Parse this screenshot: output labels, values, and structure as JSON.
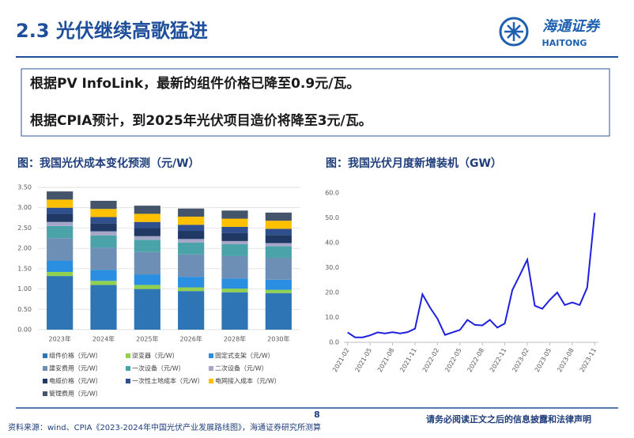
{
  "header": {
    "title": "2.3 光伏继续高歌猛进",
    "logo_cn": "海通证券",
    "logo_en": "HAITONG"
  },
  "box": {
    "lines": [
      "根据PV InfoLink，最新的组件价格已降至0.9元/瓦。",
      "根据CPIA预计，到2025年光伏项目造价将降至3元/瓦。"
    ]
  },
  "footer": {
    "source": "资料来源：wind、CPIA《2023-2024年中国光伏产业发展路线图》，海通证券研究所测算",
    "page": "8",
    "disclaimer": "请务必阅读正文之后的信息披露和法律声明"
  },
  "chart_data": [
    {
      "type": "stacked_bar",
      "title": "图：我国光伏成本变化预测（元/W）",
      "categories": [
        "2023年",
        "2024年",
        "2025年",
        "2026年",
        "2028年",
        "2030年"
      ],
      "ylim": [
        0,
        3.5
      ],
      "yticks": [
        {
          "value": 0,
          "label": "0.00"
        },
        {
          "value": 0.5,
          "label": "0.50"
        },
        {
          "value": 1,
          "label": "1.00"
        },
        {
          "value": 1.5,
          "label": "1.50"
        },
        {
          "value": 2,
          "label": "2.00"
        },
        {
          "value": 2.5,
          "label": "2.50"
        },
        {
          "value": 3,
          "label": "3.00"
        },
        {
          "value": 3.5,
          "label": "3.50"
        }
      ],
      "grid": true,
      "series": [
        {
          "name": "组件价格（元/W）",
          "color": "#2e75b6",
          "values": [
            1.32,
            1.1,
            1.0,
            0.95,
            0.92,
            0.9
          ]
        },
        {
          "name": "逆变器（元/W）",
          "color": "#92d050",
          "values": [
            0.1,
            0.1,
            0.1,
            0.09,
            0.09,
            0.08
          ]
        },
        {
          "name": "固定式支架（元/W）",
          "color": "#2a8fe0",
          "values": [
            0.28,
            0.27,
            0.26,
            0.26,
            0.25,
            0.25
          ]
        },
        {
          "name": "建安费用（元/W）",
          "color": "#6d8fb5",
          "values": [
            0.55,
            0.55,
            0.55,
            0.55,
            0.55,
            0.54
          ]
        },
        {
          "name": "一次设备（元/W）",
          "color": "#4aa3a8",
          "values": [
            0.3,
            0.3,
            0.3,
            0.29,
            0.29,
            0.28
          ]
        },
        {
          "name": "二次设备（元/W）",
          "color": "#a6a6c8",
          "values": [
            0.1,
            0.1,
            0.09,
            0.09,
            0.08,
            0.08
          ]
        },
        {
          "name": "电缆价格（元/W）",
          "color": "#1f3864",
          "values": [
            0.2,
            0.2,
            0.2,
            0.2,
            0.2,
            0.2
          ]
        },
        {
          "name": "一次性土地成本（元/W）",
          "color": "#2f4f8f",
          "values": [
            0.15,
            0.15,
            0.15,
            0.15,
            0.15,
            0.15
          ]
        },
        {
          "name": "电网接入成本（元/W）",
          "color": "#ffc000",
          "values": [
            0.2,
            0.2,
            0.2,
            0.2,
            0.2,
            0.2
          ]
        },
        {
          "name": "管理费用（元/W）",
          "color": "#44546a",
          "values": [
            0.2,
            0.2,
            0.2,
            0.2,
            0.2,
            0.2
          ]
        }
      ]
    },
    {
      "type": "line",
      "title": "图：我国光伏月度新增装机（GW）",
      "categories": [
        "2021-02",
        null,
        null,
        "2021-05",
        null,
        null,
        "2021-08",
        null,
        null,
        "2021-11",
        null,
        null,
        "2022-02",
        null,
        null,
        "2022-05",
        null,
        null,
        "2022-08",
        null,
        null,
        "2022-11",
        null,
        null,
        "2023-02",
        null,
        null,
        "2023-05",
        null,
        null,
        "2023-08",
        null,
        null,
        "2023-11"
      ],
      "ylim": [
        0,
        60
      ],
      "yticks": [
        {
          "value": 0,
          "label": "0.0"
        },
        {
          "value": 10,
          "label": "10.0"
        },
        {
          "value": 20,
          "label": "20.0"
        },
        {
          "value": 30,
          "label": "30.0"
        },
        {
          "value": 40,
          "label": "40.0"
        },
        {
          "value": 50,
          "label": "50.0"
        },
        {
          "value": 60,
          "label": "60.0"
        }
      ],
      "color": "#1f1fe0",
      "values": [
        4.0,
        2.0,
        2.0,
        2.8,
        4.0,
        3.6,
        4.1,
        3.6,
        4.1,
        5.5,
        19.3,
        14.0,
        9.5,
        3.0,
        4.0,
        5.0,
        9.0,
        7.0,
        6.8,
        9.0,
        5.9,
        7.6,
        21.0,
        27.0,
        33.2,
        14.7,
        13.5,
        17.0,
        20.0,
        15.0,
        16.0,
        15.0,
        22.0,
        52.0
      ]
    }
  ]
}
